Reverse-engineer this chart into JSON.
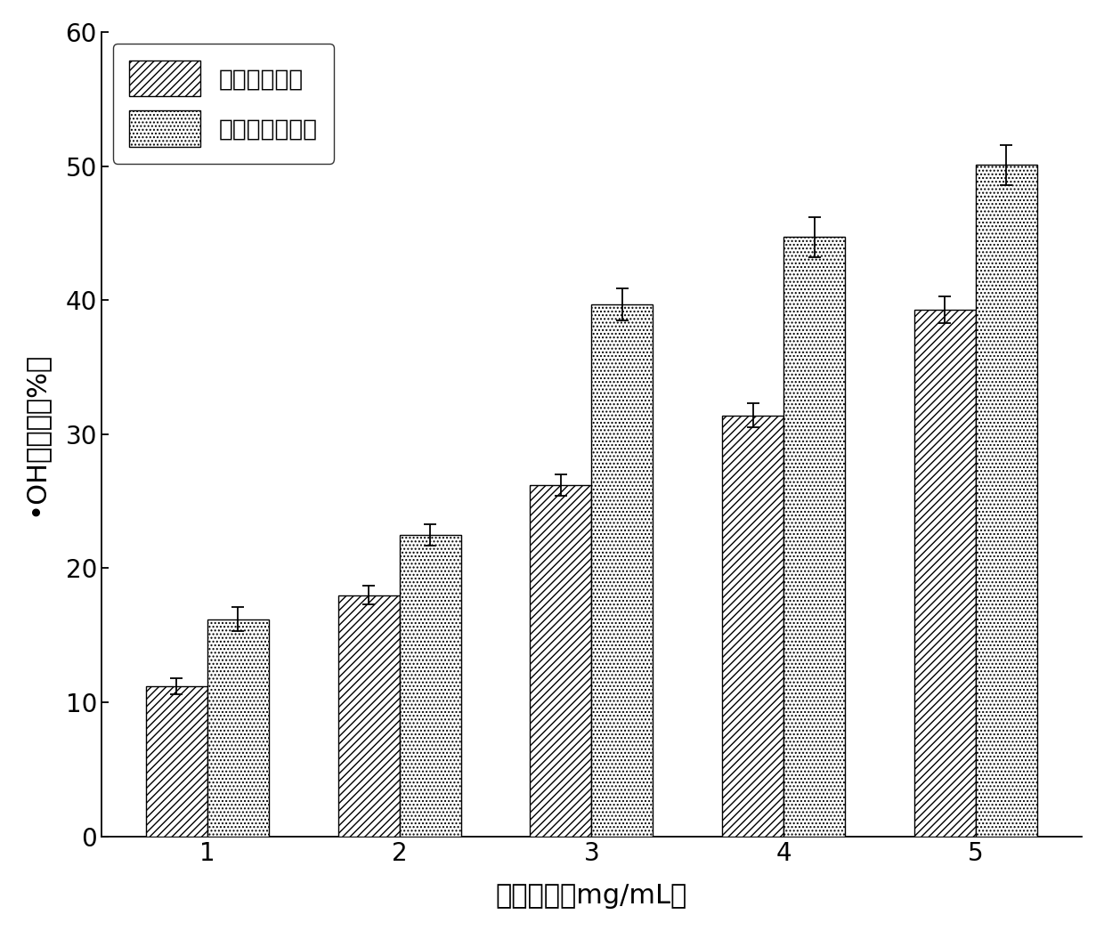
{
  "categories": [
    1,
    2,
    3,
    4,
    5
  ],
  "series1_values": [
    11.2,
    18.0,
    26.2,
    31.4,
    39.3
  ],
  "series1_errors": [
    0.6,
    0.7,
    0.8,
    0.9,
    1.0
  ],
  "series2_values": [
    16.2,
    22.5,
    39.7,
    44.7,
    50.1
  ],
  "series2_errors": [
    0.9,
    0.8,
    1.2,
    1.5,
    1.5
  ],
  "series1_label": "羊栖菜粗多糖",
  "series2_label": "降解羊栖菜多糖",
  "xlabel": "样品浓度（mg/mL）",
  "ylabel": "•OH清除率（%）",
  "ylim": [
    0,
    60
  ],
  "yticks": [
    0,
    10,
    20,
    30,
    40,
    50,
    60
  ],
  "bar_width": 0.32,
  "figsize": [
    12.4,
    10.46
  ],
  "dpi": 100,
  "background_color": "#ffffff",
  "bar1_facecolor": "white",
  "bar2_facecolor": "white",
  "hatch1": "////",
  "hatch2": "....",
  "edgecolor": "black",
  "font_size_label": 22,
  "font_size_tick": 20,
  "font_size_legend": 19
}
